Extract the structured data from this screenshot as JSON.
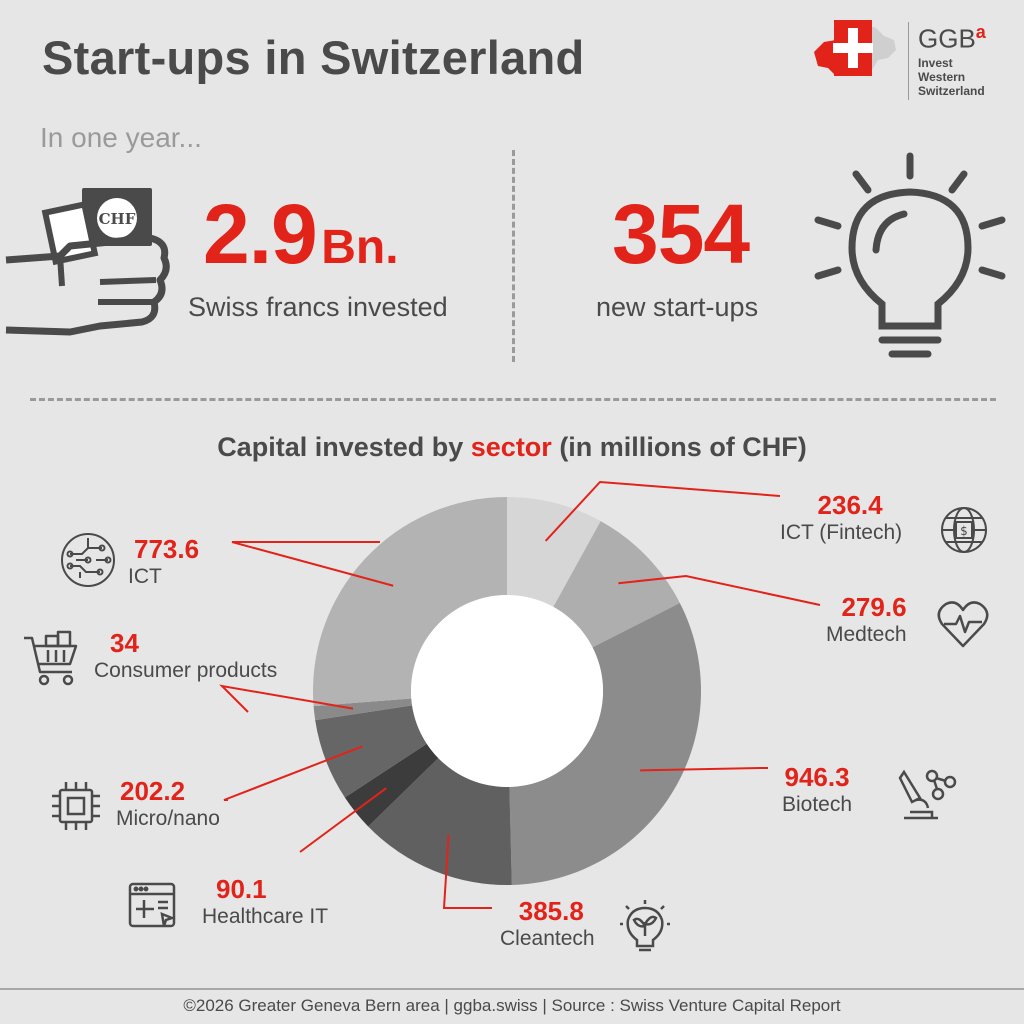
{
  "header": {
    "title": "Start-ups in Switzerland",
    "logo_name": "GGB",
    "logo_superscript": "a",
    "logo_subtitle": [
      "Invest",
      "Western",
      "Switzerland"
    ]
  },
  "intro": "In one year...",
  "stats": {
    "investment": {
      "value": "2.9",
      "unit": "Bn.",
      "label": "Swiss francs invested",
      "icon": "money-hand-icon",
      "icon_text": "CHF"
    },
    "startups": {
      "value": "354",
      "label": "new start-ups",
      "icon": "lightbulb-icon"
    }
  },
  "colors": {
    "accent": "#e2231a",
    "text": "#4a4a4a",
    "background": "#e6e6e6"
  },
  "chart_data": {
    "type": "pie",
    "title_prefix": "Capital invested by ",
    "title_highlight": "sector",
    "title_suffix": " (in millions of CHF)",
    "slices": [
      {
        "label": "ICT (Fintech)",
        "value": 236.4,
        "value_text": "236.4",
        "color": "#d6d6d6",
        "icon": "fintech-globe-icon"
      },
      {
        "label": "Medtech",
        "value": 279.6,
        "value_text": "279.6",
        "color": "#aeaeae",
        "icon": "heartbeat-icon"
      },
      {
        "label": "Biotech",
        "value": 946.3,
        "value_text": "946.3",
        "color": "#8c8c8c",
        "icon": "microscope-icon"
      },
      {
        "label": "Cleantech",
        "value": 385.8,
        "value_text": "385.8",
        "color": "#606060",
        "icon": "eco-bulb-icon"
      },
      {
        "label": "Healthcare IT",
        "value": 90.1,
        "value_text": "90.1",
        "color": "#3c3c3c",
        "icon": "health-window-icon"
      },
      {
        "label": "Micro/nano",
        "value": 202.2,
        "value_text": "202.2",
        "color": "#666666",
        "icon": "chip-icon"
      },
      {
        "label": "Consumer products",
        "value": 34,
        "value_text": "34",
        "color": "#8a8a8a",
        "icon": "shopping-cart-icon"
      },
      {
        "label": "ICT",
        "value": 773.6,
        "value_text": "773.6",
        "color": "#b3b3b3",
        "icon": "circuit-icon"
      }
    ]
  },
  "footer": "©2026 Greater Geneva Bern area | ggba.swiss | Source : Swiss Venture Capital Report"
}
